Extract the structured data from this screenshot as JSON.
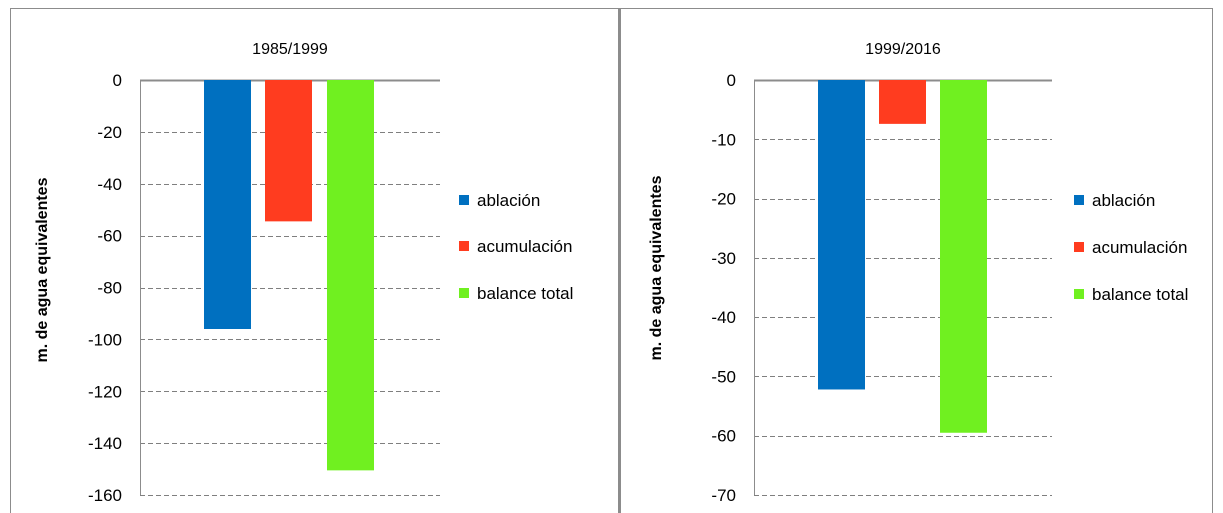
{
  "chart_data": [
    {
      "type": "bar",
      "title": "1985/1999",
      "ylabel": "m. de agua equivalentes",
      "xlabel": "",
      "ylim": [
        -160,
        0
      ],
      "yticks": [
        0,
        -20,
        -40,
        -60,
        -80,
        -100,
        -120,
        -140,
        -160
      ],
      "grid": true,
      "legend_position": "right",
      "series": [
        {
          "name": "ablación",
          "value": -96,
          "color": "#0070C0"
        },
        {
          "name": "acumulación",
          "value": -54.5,
          "color": "#FF3C1F"
        },
        {
          "name": "balance total",
          "value": -150.5,
          "color": "#70F020"
        }
      ]
    },
    {
      "type": "bar",
      "title": "1999/2016",
      "ylabel": "m. de agua equivalentes",
      "xlabel": "",
      "ylim": [
        -70,
        0
      ],
      "yticks": [
        0,
        -10,
        -20,
        -30,
        -40,
        -50,
        -60,
        -70
      ],
      "grid": true,
      "legend_position": "right",
      "series": [
        {
          "name": "ablación",
          "value": -52.2,
          "color": "#0070C0"
        },
        {
          "name": "acumulación",
          "value": -7.4,
          "color": "#FF3C1F"
        },
        {
          "name": "balance total",
          "value": -59.5,
          "color": "#70F020"
        }
      ]
    }
  ]
}
